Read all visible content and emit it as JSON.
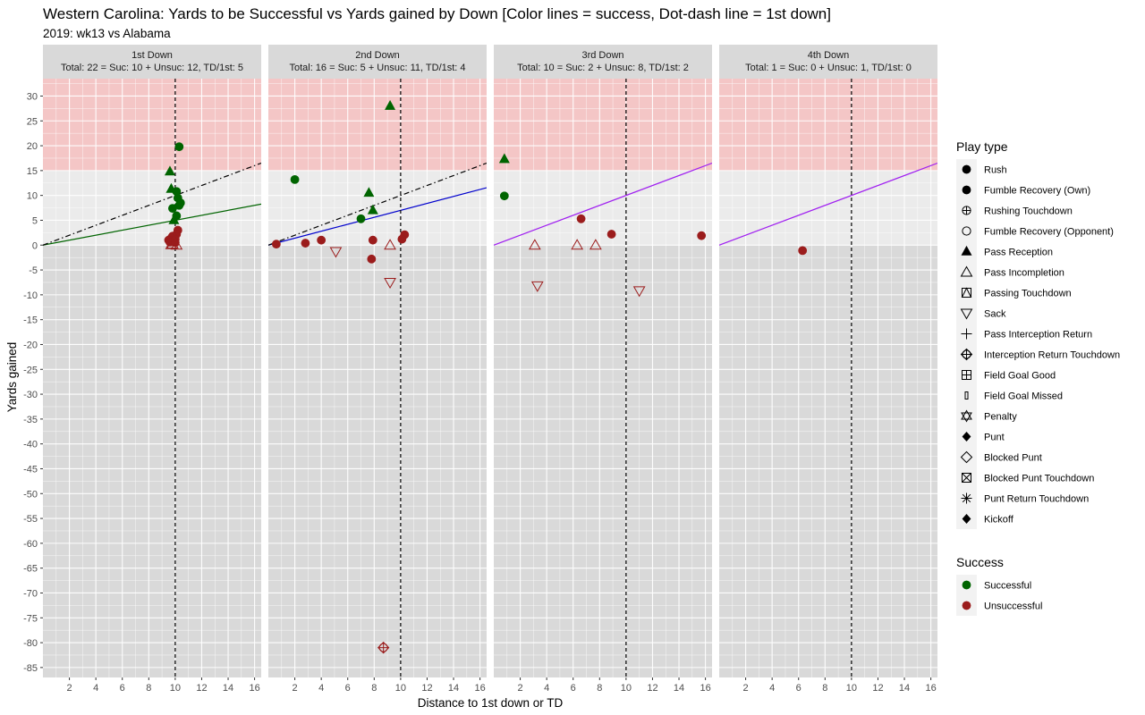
{
  "chart_data": {
    "type": "scatter",
    "title": "Western Carolina: Yards to be Successful vs Yards gained by Down  [Color lines = success, Dot-dash line = 1st down]",
    "subtitle": "2019: wk13 vs Alabama",
    "xlabel": "Distance to 1st down or TD",
    "ylabel": "Yards gained",
    "xlim": [
      0,
      16.5
    ],
    "ylim": [
      -87,
      33.5
    ],
    "x_ticks": [
      2,
      4,
      6,
      8,
      10,
      12,
      14,
      16
    ],
    "y_ticks": [
      30,
      25,
      20,
      15,
      10,
      5,
      0,
      -5,
      -10,
      -15,
      -20,
      -25,
      -30,
      -35,
      -40,
      -45,
      -50,
      -55,
      -60,
      -65,
      -70,
      -75,
      -80,
      -85
    ],
    "grid": true,
    "legend_position": "right",
    "shade_bands": [
      {
        "from": 15,
        "to": 33.5,
        "color": "#f4c6c6"
      },
      {
        "from": 0,
        "to": 15,
        "color": "#ebebeb"
      },
      {
        "from": -87,
        "to": 0,
        "color": "#d9d9d9"
      }
    ],
    "first_down_x": 10,
    "facets": [
      {
        "strip_title": "1st Down",
        "strip_subtitle": "Total: 22 = Suc: 10 + Unsuc: 12, TD/1st: 5",
        "success_line": {
          "slope": 0.5,
          "color": "#006400"
        },
        "first_down_line": true,
        "points": [
          {
            "x": 10.3,
            "y": 19.8,
            "shape": "circle",
            "success": true
          },
          {
            "x": 9.6,
            "y": 14.8,
            "shape": "triangle",
            "success": true
          },
          {
            "x": 9.7,
            "y": 11.3,
            "shape": "triangle",
            "success": true
          },
          {
            "x": 10.1,
            "y": 10.8,
            "shape": "circle",
            "success": true
          },
          {
            "x": 10.2,
            "y": 9.5,
            "shape": "circle",
            "success": true
          },
          {
            "x": 10.4,
            "y": 8.5,
            "shape": "circle",
            "success": true
          },
          {
            "x": 10.3,
            "y": 8.0,
            "shape": "circle",
            "success": true
          },
          {
            "x": 9.8,
            "y": 7.4,
            "shape": "circle",
            "success": true
          },
          {
            "x": 10.1,
            "y": 5.9,
            "shape": "circle",
            "success": true
          },
          {
            "x": 9.9,
            "y": 5.0,
            "shape": "triangle",
            "success": true
          },
          {
            "x": 10.2,
            "y": 3.0,
            "shape": "circle",
            "success": false
          },
          {
            "x": 10.1,
            "y": 2.2,
            "shape": "circle",
            "success": false
          },
          {
            "x": 9.8,
            "y": 1.8,
            "shape": "circle",
            "success": false
          },
          {
            "x": 9.7,
            "y": 1.4,
            "shape": "circle",
            "success": false
          },
          {
            "x": 10.0,
            "y": 1.2,
            "shape": "circle",
            "success": false
          },
          {
            "x": 9.5,
            "y": 1.0,
            "shape": "circle",
            "success": false
          },
          {
            "x": 9.9,
            "y": 0.9,
            "shape": "circle",
            "success": false
          },
          {
            "x": 9.6,
            "y": 0.6,
            "shape": "circle",
            "success": false
          },
          {
            "x": 10.0,
            "y": 0.5,
            "shape": "circle",
            "success": false
          },
          {
            "x": 9.8,
            "y": 0.2,
            "shape": "triangle-open",
            "success": false
          },
          {
            "x": 9.7,
            "y": 0.1,
            "shape": "triangle-open",
            "success": false
          },
          {
            "x": 10.1,
            "y": 0.0,
            "shape": "triangle-open",
            "success": false
          }
        ]
      },
      {
        "strip_title": "2nd Down",
        "strip_subtitle": "Total: 16 = Suc: 5 + Unsuc: 11, TD/1st: 4",
        "success_line": {
          "slope": 0.7,
          "color": "#0000cd"
        },
        "first_down_line": true,
        "points": [
          {
            "x": 9.2,
            "y": 28.0,
            "shape": "triangle",
            "success": true
          },
          {
            "x": 2.0,
            "y": 13.2,
            "shape": "circle",
            "success": true
          },
          {
            "x": 7.6,
            "y": 10.5,
            "shape": "triangle",
            "success": true
          },
          {
            "x": 7.9,
            "y": 7.0,
            "shape": "triangle",
            "success": true
          },
          {
            "x": 7.0,
            "y": 5.3,
            "shape": "circle",
            "success": true
          },
          {
            "x": 0.6,
            "y": 0.2,
            "shape": "circle",
            "success": false
          },
          {
            "x": 2.8,
            "y": 0.4,
            "shape": "circle",
            "success": false
          },
          {
            "x": 4.0,
            "y": 1.0,
            "shape": "circle",
            "success": false
          },
          {
            "x": 7.9,
            "y": 1.0,
            "shape": "circle",
            "success": false
          },
          {
            "x": 10.3,
            "y": 2.1,
            "shape": "circle",
            "success": false
          },
          {
            "x": 10.1,
            "y": 1.2,
            "shape": "circle",
            "success": false
          },
          {
            "x": 7.8,
            "y": -2.8,
            "shape": "circle",
            "success": false
          },
          {
            "x": 5.1,
            "y": -1.3,
            "shape": "triangle-down-open",
            "success": false
          },
          {
            "x": 9.2,
            "y": 0.0,
            "shape": "triangle-open",
            "success": false
          },
          {
            "x": 9.2,
            "y": -7.5,
            "shape": "triangle-down-open",
            "success": false
          },
          {
            "x": 8.7,
            "y": -81.0,
            "shape": "circle-cross-open",
            "success": false
          }
        ]
      },
      {
        "strip_title": "3rd Down",
        "strip_subtitle": "Total: 10 = Suc: 2 + Unsuc: 8, TD/1st: 2",
        "success_line": {
          "slope": 1.0,
          "color": "#a020f0"
        },
        "first_down_line": false,
        "points": [
          {
            "x": 0.8,
            "y": 17.3,
            "shape": "triangle",
            "success": true
          },
          {
            "x": 0.8,
            "y": 9.9,
            "shape": "circle",
            "success": true
          },
          {
            "x": 6.6,
            "y": 5.3,
            "shape": "circle",
            "success": false
          },
          {
            "x": 8.9,
            "y": 2.2,
            "shape": "circle",
            "success": false
          },
          {
            "x": 15.7,
            "y": 1.9,
            "shape": "circle",
            "success": false
          },
          {
            "x": 3.1,
            "y": 0.0,
            "shape": "triangle-open",
            "success": false
          },
          {
            "x": 6.3,
            "y": 0.0,
            "shape": "triangle-open",
            "success": false
          },
          {
            "x": 7.7,
            "y": 0.0,
            "shape": "triangle-open",
            "success": false
          },
          {
            "x": 3.3,
            "y": -8.2,
            "shape": "triangle-down-open",
            "success": false
          },
          {
            "x": 11.0,
            "y": -9.2,
            "shape": "triangle-down-open",
            "success": false
          }
        ]
      },
      {
        "strip_title": "4th Down",
        "strip_subtitle": "Total: 1 = Suc: 0 + Unsuc: 1, TD/1st: 0",
        "success_line": {
          "slope": 1.0,
          "color": "#a020f0"
        },
        "first_down_line": false,
        "points": [
          {
            "x": 6.3,
            "y": -1.1,
            "shape": "circle",
            "success": false
          }
        ]
      }
    ],
    "legend_play_type": {
      "title": "Play type",
      "items": [
        {
          "label": "Rush",
          "shape": "circle"
        },
        {
          "label": "Fumble Recovery (Own)",
          "shape": "circle"
        },
        {
          "label": "Rushing Touchdown",
          "shape": "circle-plus-open"
        },
        {
          "label": "Fumble Recovery (Opponent)",
          "shape": "circle-open"
        },
        {
          "label": "Pass Reception",
          "shape": "triangle"
        },
        {
          "label": "Pass Incompletion",
          "shape": "triangle-open"
        },
        {
          "label": "Passing Touchdown",
          "shape": "square-triangle-open"
        },
        {
          "label": "Sack",
          "shape": "triangle-down-open"
        },
        {
          "label": "Pass Interception Return",
          "shape": "plus"
        },
        {
          "label": "Interception Return Touchdown",
          "shape": "circle-cross-open"
        },
        {
          "label": "Field Goal Good",
          "shape": "square-plus-open"
        },
        {
          "label": "Field Goal Missed",
          "shape": "small-rect-open"
        },
        {
          "label": "Penalty",
          "shape": "star-of-david-open"
        },
        {
          "label": "Punt",
          "shape": "diamond"
        },
        {
          "label": "Blocked Punt",
          "shape": "diamond-open"
        },
        {
          "label": "Blocked Punt Touchdown",
          "shape": "square-x-open"
        },
        {
          "label": "Punt Return Touchdown",
          "shape": "asterisk"
        },
        {
          "label": "Kickoff",
          "shape": "diamond"
        }
      ]
    },
    "legend_success": {
      "title": "Success",
      "items": [
        {
          "label": "Successful",
          "color": "#006400"
        },
        {
          "label": "Unsuccessful",
          "color": "#9b1c1c"
        }
      ]
    },
    "colors": {
      "successful": "#006400",
      "unsuccessful": "#9b1c1c",
      "first_down_line": "#000000",
      "strip_bg": "#d9d9d9",
      "legend_key_bg": "#f2f2f2"
    }
  }
}
